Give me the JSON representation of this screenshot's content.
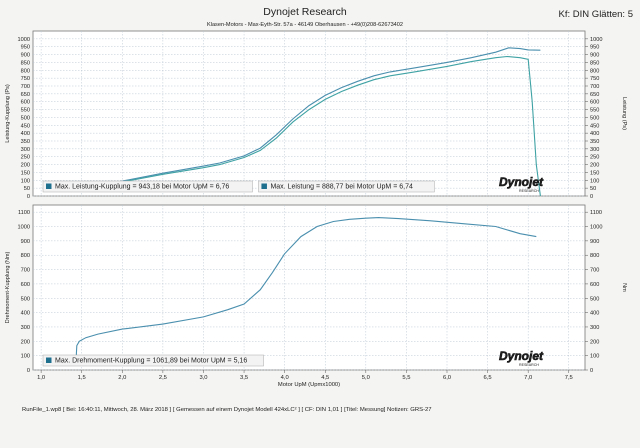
{
  "header": {
    "title": "Dynojet Research",
    "address": "Klasen-Motors  -  Max-Eyth-Str. 57a  -  46149 Oberhausen  -  +49(0)208-62673402",
    "smoothing": "Kf: DIN Glätten: 5"
  },
  "brand": {
    "logo_text": "Dynojet",
    "logo_sub": "RESEARCH"
  },
  "footer": {
    "run_info": "RunFile_1.wp8 [ Bei: 16:40:11, Mittwoch, 28. März 2018 ]  [ Gemessen auf einem Dynojet Modell 424xLC² ]  [ CF: DIN 1,01 ]  [Titel: Messung]  Notizen: GRS-27"
  },
  "colors": {
    "series_a": "#4a8fae",
    "series_b": "#3fa2a4",
    "grid": "#b9c6d2",
    "logo_red": "#c8202a"
  },
  "chart_data": [
    {
      "type": "line",
      "ylabel": "Leistung-Kupplung (Ps)",
      "y2label": "Leistung (Ps)",
      "xlim": [
        0.9,
        7.7
      ],
      "ylim": [
        0,
        1050
      ],
      "y2lim": [
        0,
        1050
      ],
      "yticks": [
        0,
        50,
        100,
        150,
        200,
        250,
        300,
        350,
        400,
        450,
        500,
        550,
        600,
        650,
        700,
        750,
        800,
        850,
        900,
        950,
        1000
      ],
      "y2ticks": [
        0,
        50,
        100,
        150,
        200,
        250,
        300,
        350,
        400,
        450,
        500,
        550,
        600,
        650,
        700,
        750,
        800,
        850,
        900,
        950,
        1000
      ],
      "grid": true,
      "series": [
        {
          "legend": "Max. Leistung-Kupplung = 943,18 bei Motor UpM = 6,76",
          "x": [
            1.45,
            1.5,
            1.7,
            2.0,
            2.5,
            3.0,
            3.2,
            3.5,
            3.7,
            3.9,
            4.1,
            4.3,
            4.5,
            4.7,
            4.9,
            5.1,
            5.3,
            5.6,
            6.0,
            6.3,
            6.6,
            6.76,
            6.9,
            7.0,
            7.15
          ],
          "y": [
            40,
            45,
            65,
            95,
            145,
            190,
            210,
            255,
            305,
            390,
            490,
            575,
            640,
            690,
            730,
            765,
            790,
            815,
            850,
            880,
            915,
            943,
            938,
            930,
            928
          ]
        },
        {
          "legend": "Max. Leistung = 888,77 bei Motor UpM = 6,74",
          "x": [
            1.45,
            1.5,
            1.7,
            2.0,
            2.5,
            3.0,
            3.2,
            3.5,
            3.7,
            3.9,
            4.1,
            4.3,
            4.5,
            4.7,
            4.9,
            5.1,
            5.3,
            5.6,
            6.0,
            6.3,
            6.6,
            6.74,
            6.9,
            7.0,
            7.05,
            7.1,
            7.15
          ],
          "y": [
            35,
            40,
            60,
            90,
            138,
            180,
            200,
            245,
            290,
            370,
            470,
            550,
            615,
            665,
            705,
            740,
            765,
            790,
            825,
            855,
            880,
            888,
            880,
            870,
            600,
            200,
            0
          ]
        }
      ]
    },
    {
      "type": "line",
      "ylabel": "Drehmoment-Kupplung (Nm)",
      "y2label": "Nm",
      "xlabel": "Motor UpM (Upmx1000)",
      "xlim": [
        0.9,
        7.7
      ],
      "ylim": [
        0,
        1150
      ],
      "y2lim": [
        0,
        1150
      ],
      "yticks": [
        0,
        100,
        200,
        300,
        400,
        500,
        600,
        700,
        800,
        900,
        1000,
        1100
      ],
      "y2ticks": [
        0,
        100,
        200,
        300,
        400,
        500,
        600,
        700,
        800,
        900,
        1000,
        1100
      ],
      "xticks": [
        1.0,
        1.5,
        2.0,
        2.5,
        3.0,
        3.5,
        4.0,
        4.5,
        5.0,
        5.5,
        6.0,
        6.5,
        7.0,
        7.5
      ],
      "xticklabels": [
        "1,0",
        "1,5",
        "2,0",
        "2,5",
        "3,0",
        "3,5",
        "4,0",
        "4,5",
        "5,0",
        "5,5",
        "6,0",
        "6,5",
        "7,0",
        "7,5"
      ],
      "grid": true,
      "series": [
        {
          "legend": "Max. Drehmoment-Kupplung = 1061,89 bei Motor UpM = 5,16",
          "x": [
            1.43,
            1.44,
            1.47,
            1.55,
            1.7,
            2.0,
            2.5,
            3.0,
            3.3,
            3.5,
            3.7,
            3.85,
            4.0,
            4.2,
            4.4,
            4.6,
            4.8,
            5.0,
            5.16,
            5.4,
            5.8,
            6.2,
            6.6,
            6.9,
            7.1
          ],
          "y": [
            60,
            170,
            200,
            225,
            250,
            285,
            320,
            370,
            420,
            460,
            560,
            680,
            810,
            930,
            1000,
            1035,
            1050,
            1058,
            1062,
            1055,
            1040,
            1020,
            1000,
            950,
            930
          ]
        }
      ]
    }
  ]
}
